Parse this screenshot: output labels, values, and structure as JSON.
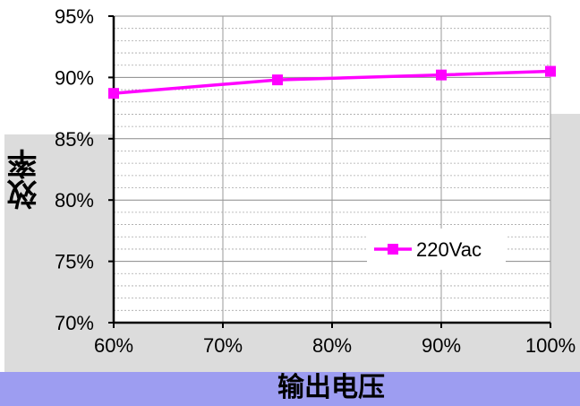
{
  "chart_data": {
    "type": "line",
    "title": "",
    "xlabel": "输出电压",
    "ylabel": "效率",
    "categories": [
      "60%",
      "70%",
      "80%",
      "90%",
      "100%"
    ],
    "x": [
      60,
      70,
      80,
      90,
      100
    ],
    "xlim": [
      60,
      100
    ],
    "ylim": [
      70,
      95
    ],
    "y_ticks": [
      "70%",
      "75%",
      "80%",
      "85%",
      "90%",
      "95%"
    ],
    "series": [
      {
        "name": "220Vac",
        "x": [
          60,
          75,
          90,
          100
        ],
        "y": [
          88.7,
          89.8,
          90.2,
          90.5
        ],
        "color": "#ff00ff"
      }
    ],
    "grid": true,
    "legend_position": "bottom-right"
  },
  "colors": {
    "series": "#ff00ff",
    "gray_band": "#dcdcdc",
    "blue_band": "#9d9df1",
    "grid": "#999999"
  }
}
